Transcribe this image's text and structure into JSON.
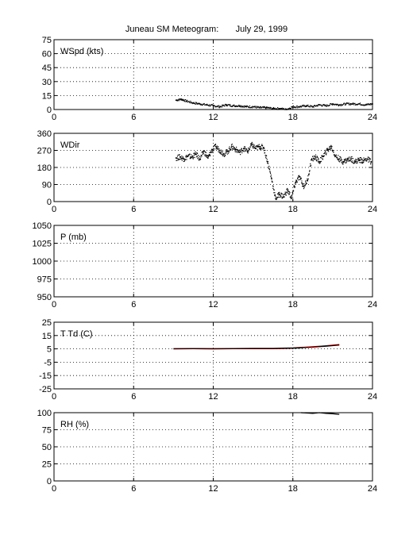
{
  "figure": {
    "title": "Juneau SM Meteogram:       July 29, 1999"
  },
  "chart_data": [
    {
      "type": "scatter",
      "panel_label": "WSpd (kts)",
      "xlim": [
        0,
        24
      ],
      "xticks": [
        0,
        6,
        12,
        18,
        24
      ],
      "ylim": [
        0,
        75
      ],
      "yticks": [
        0,
        15,
        30,
        45,
        60,
        75
      ],
      "grid": true,
      "series": [
        {
          "color": "#000000",
          "x": [
            9.2,
            9.6,
            10.0,
            10.5,
            11.0,
            11.5,
            12.0,
            12.5,
            13.0,
            13.5,
            14.0,
            14.5,
            15.0,
            15.5,
            16.0,
            16.5,
            17.0,
            17.5,
            18.0,
            18.5,
            19.0,
            19.5,
            20.0,
            20.5,
            21.0,
            21.5,
            22.0,
            22.5,
            23.0,
            23.5,
            24.0
          ],
          "y": [
            10,
            11,
            9,
            7,
            6,
            5,
            4,
            3,
            5,
            4,
            4,
            3,
            3,
            2,
            2,
            1,
            1,
            0,
            3,
            3,
            4,
            3,
            5,
            4,
            6,
            5,
            6,
            6,
            6,
            5,
            6
          ]
        }
      ]
    },
    {
      "type": "scatter",
      "panel_label": "WDir",
      "xlim": [
        0,
        24
      ],
      "xticks": [
        0,
        6,
        12,
        18,
        24
      ],
      "ylim": [
        0,
        360
      ],
      "yticks": [
        0,
        90,
        180,
        270,
        360
      ],
      "grid": true,
      "series": [
        {
          "color": "#000000",
          "x": [
            9.2,
            9.5,
            9.8,
            10.1,
            10.4,
            10.7,
            11.0,
            11.3,
            11.6,
            11.9,
            12.2,
            12.5,
            12.8,
            13.1,
            13.4,
            13.7,
            14.0,
            14.3,
            14.6,
            14.9,
            15.2,
            15.5,
            15.8,
            16.1,
            16.4,
            16.7,
            17.0,
            17.3,
            17.6,
            17.9,
            18.2,
            18.5,
            18.8,
            19.1,
            19.4,
            19.7,
            20.0,
            20.3,
            20.6,
            20.9,
            21.2,
            21.5,
            21.8,
            22.1,
            22.4,
            22.7,
            23.0,
            23.3,
            23.6,
            23.9
          ],
          "y": [
            230,
            235,
            225,
            240,
            235,
            250,
            225,
            265,
            230,
            270,
            290,
            270,
            250,
            265,
            290,
            275,
            260,
            280,
            265,
            300,
            280,
            290,
            285,
            210,
            120,
            15,
            40,
            25,
            60,
            20,
            100,
            130,
            80,
            110,
            220,
            235,
            210,
            240,
            270,
            290,
            240,
            225,
            210,
            220,
            225,
            210,
            220,
            215,
            225,
            210
          ]
        }
      ]
    },
    {
      "type": "line",
      "panel_label": "P (mb)",
      "xlim": [
        0,
        24
      ],
      "xticks": [
        0,
        6,
        12,
        18,
        24
      ],
      "ylim": [
        950,
        1050
      ],
      "yticks": [
        950,
        975,
        1000,
        1025,
        1050
      ],
      "grid": true,
      "series": []
    },
    {
      "type": "line",
      "panel_label": "T Td (C)",
      "xlim": [
        0,
        24
      ],
      "xticks": [
        0,
        6,
        12,
        18,
        24
      ],
      "ylim": [
        -25,
        25
      ],
      "yticks": [
        -25,
        -15,
        -5,
        5,
        15,
        25
      ],
      "grid": true,
      "series": [
        {
          "color": "#ff0000",
          "x": [
            9.0,
            10.5,
            12.0,
            13.5,
            15.0,
            16.5,
            18.0,
            19.5,
            20.5,
            21.5
          ],
          "y": [
            5.2,
            5.3,
            5.2,
            5.3,
            5.4,
            5.4,
            5.8,
            6.6,
            7.3,
            8.2
          ]
        },
        {
          "color": "#000000",
          "x": [
            9.0,
            10.5,
            12.0,
            13.5,
            15.0,
            16.5,
            18.0,
            19.5,
            20.5,
            21.5
          ],
          "y": [
            5.0,
            5.1,
            5.0,
            5.1,
            5.2,
            5.2,
            5.5,
            6.3,
            7.0,
            7.9
          ]
        }
      ]
    },
    {
      "type": "line",
      "panel_label": "RH (%)",
      "xlim": [
        0,
        24
      ],
      "xticks": [
        0,
        6,
        12,
        18,
        24
      ],
      "ylim": [
        0,
        100
      ],
      "yticks": [
        0,
        25,
        50,
        75,
        100
      ],
      "grid": true,
      "series": [
        {
          "color": "#000000",
          "x": [
            18.6,
            19.0,
            19.5,
            20.0,
            20.5,
            21.0,
            21.5
          ],
          "y": [
            100,
            99.5,
            99,
            100,
            99,
            98.5,
            97.5
          ]
        }
      ]
    }
  ]
}
